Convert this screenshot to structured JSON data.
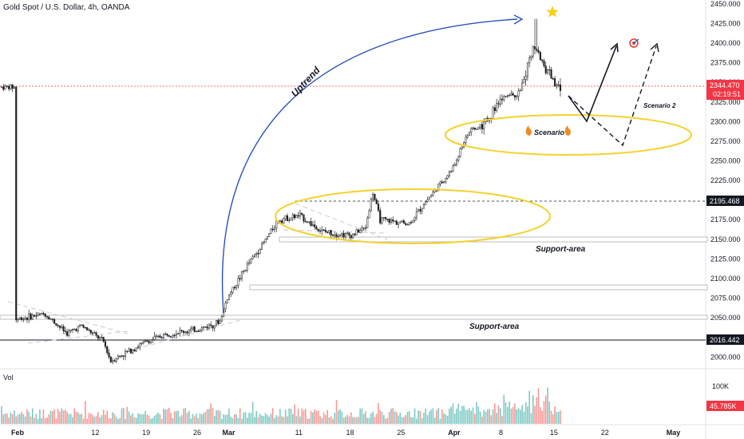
{
  "header": {
    "symbol_title": "Gold Spot / U.S. Dollar, 4h, OANDA"
  },
  "colors": {
    "up": "#26a69a",
    "down": "#ef5350",
    "candle": "#1e1e1e",
    "zone_ellipse": "#f5d22c",
    "curve": "#2952b8",
    "support_band": "#c8c8c8",
    "price_tag_dark": "#131722",
    "price_tag_red": "#f23645"
  },
  "price_axis": {
    "ticks": [
      "2450.000",
      "2425.000",
      "2400.000",
      "2375.000",
      "2350.000",
      "2325.000",
      "2300.000",
      "2275.000",
      "2250.000",
      "2225.000",
      "2200.000",
      "2175.000",
      "2150.000",
      "2125.000",
      "2100.000",
      "2075.000",
      "2050.000",
      "2025.000",
      "2000.000"
    ],
    "current_price": "2344.470",
    "countdown": "02:19:51",
    "marker_upper": "2195.468",
    "marker_lower": "2016.442"
  },
  "volume_pane": {
    "label": "Vol",
    "tick": "100K",
    "current": "45.785K"
  },
  "time_axis": {
    "ticks": [
      "Feb",
      "12",
      "19",
      "26",
      "Mar",
      "11",
      "18",
      "25",
      "Apr",
      "8",
      "15",
      "22",
      "May"
    ]
  },
  "annotations": {
    "uptrend": "Uptrend",
    "scenario1": "Scenario 1",
    "scenario2": "Scenario 2",
    "support_area_1": "Support-area",
    "support_area_2": "Support-area"
  },
  "chart_data": {
    "type": "candlestick",
    "title": "Gold Spot / U.S. Dollar, 4h, OANDA",
    "ylim": [
      1985,
      2455
    ],
    "x_ticks": [
      "Feb",
      "12",
      "19",
      "26",
      "Mar",
      "11",
      "18",
      "25",
      "Apr",
      "8",
      "15",
      "22",
      "May"
    ],
    "price_path": [
      [
        "Feb 1",
        2048
      ],
      [
        "Feb 5",
        2055
      ],
      [
        "Feb 8",
        2030
      ],
      [
        "Feb 10",
        2040
      ],
      [
        "Feb 13",
        2020
      ],
      [
        "Feb 14",
        1995
      ],
      [
        "Feb 16",
        2005
      ],
      [
        "Feb 19",
        2020
      ],
      [
        "Feb 22",
        2030
      ],
      [
        "Feb 26",
        2035
      ],
      [
        "Feb 29",
        2045
      ],
      [
        "Mar 1",
        2075
      ],
      [
        "Mar 4",
        2120
      ],
      [
        "Mar 6",
        2145
      ],
      [
        "Mar 8",
        2175
      ],
      [
        "Mar 11",
        2180
      ],
      [
        "Mar 14",
        2160
      ],
      [
        "Mar 18",
        2155
      ],
      [
        "Mar 20",
        2165
      ],
      [
        "Mar 21",
        2210
      ],
      [
        "Mar 22",
        2175
      ],
      [
        "Mar 26",
        2170
      ],
      [
        "Mar 28",
        2195
      ],
      [
        "Apr 1",
        2240
      ],
      [
        "Apr 3",
        2285
      ],
      [
        "Apr 5",
        2295
      ],
      [
        "Apr 8",
        2330
      ],
      [
        "Apr 10",
        2335
      ],
      [
        "Apr 11",
        2360
      ],
      [
        "Apr 12",
        2395
      ],
      [
        "Apr 15",
        2350
      ],
      [
        "Apr 16",
        2344
      ]
    ],
    "all_time_high": 2431,
    "levels": {
      "dashed_resistance": 2195.468,
      "horizontal_line": 2016.442,
      "current": 2344.47
    },
    "support_zones": [
      [
        2143,
        2148
      ],
      [
        2080,
        2085
      ],
      [
        2045,
        2050
      ]
    ],
    "scenario_1_path": [
      [
        "Apr 16",
        2330
      ],
      [
        "Apr 20",
        2300
      ],
      [
        "Apr 25",
        2400
      ]
    ],
    "scenario_2_path": [
      [
        "Apr 16",
        2330
      ],
      [
        "Apr 24",
        2265
      ],
      [
        "Apr 30",
        2398
      ]
    ]
  }
}
